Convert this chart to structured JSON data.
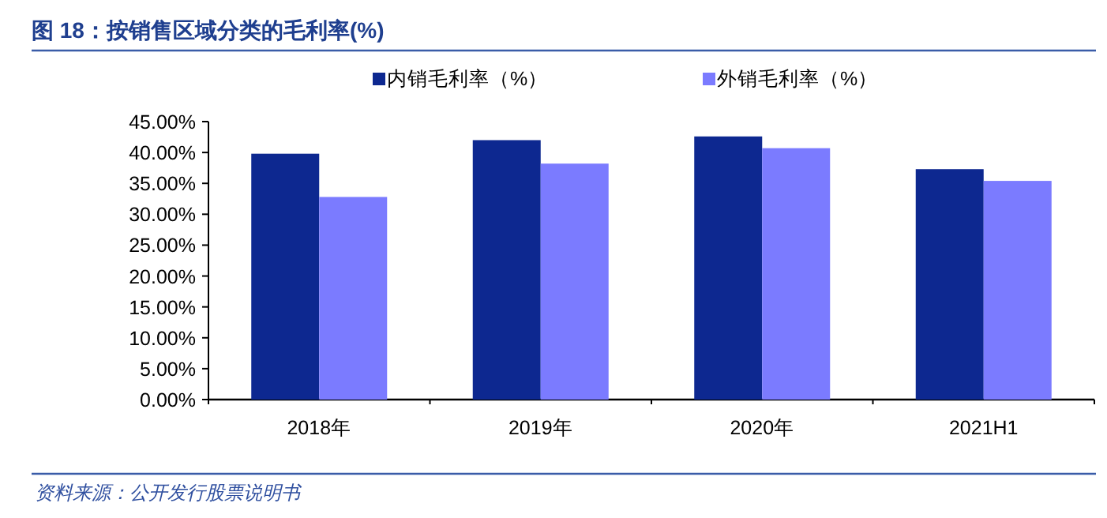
{
  "chart_data": {
    "type": "bar",
    "title": "图 18：按销售区域分类的毛利率(%)",
    "categories": [
      "2018年",
      "2019年",
      "2020年",
      "2021H1"
    ],
    "series": [
      {
        "name": "内销毛利率（%）",
        "color": "#0d2890",
        "values": [
          39.8,
          42.0,
          42.6,
          37.3
        ]
      },
      {
        "name": "外销毛利率（%）",
        "color": "#7b7bff",
        "values": [
          32.8,
          38.2,
          40.7,
          35.4
        ]
      }
    ],
    "ylim": [
      0,
      45
    ],
    "yticks": [
      {
        "value": 0,
        "label": "0.00%"
      },
      {
        "value": 5,
        "label": "5.00%"
      },
      {
        "value": 10,
        "label": "10.00%"
      },
      {
        "value": 15,
        "label": "15.00%"
      },
      {
        "value": 20,
        "label": "20.00%"
      },
      {
        "value": 25,
        "label": "25.00%"
      },
      {
        "value": 30,
        "label": "30.00%"
      },
      {
        "value": 35,
        "label": "35.00%"
      },
      {
        "value": 40,
        "label": "40.00%"
      },
      {
        "value": 45,
        "label": "45.00%"
      }
    ],
    "legend": "top",
    "annotations": [
      "资料来源：公开发行股票说明书"
    ]
  }
}
